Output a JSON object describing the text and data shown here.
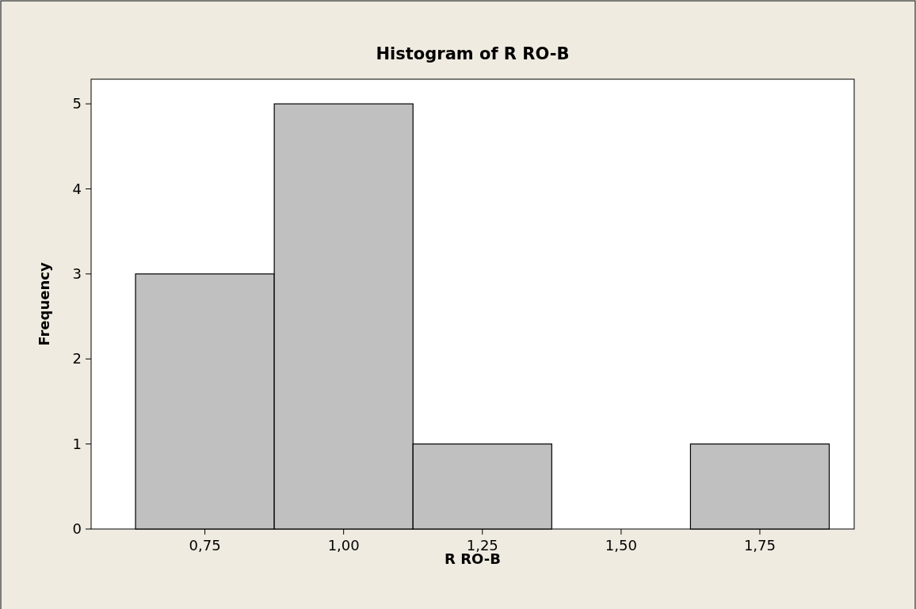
{
  "chart_data": {
    "type": "histogram",
    "title": "Histogram of R RO-B",
    "xlabel": "R RO-B",
    "ylabel": "Frequency",
    "bins": [
      0.625,
      0.875,
      1.125,
      1.375,
      1.625,
      1.875
    ],
    "values": [
      3,
      5,
      1,
      0,
      1
    ],
    "color": "#c0c0c0",
    "xlim": [
      0.545,
      1.92
    ],
    "xticks": [
      {
        "value": 0.75,
        "label": "0,75"
      },
      {
        "value": 1,
        "label": "1,00"
      },
      {
        "value": 1.25,
        "label": "1,25"
      },
      {
        "value": 1.5,
        "label": "1,50"
      },
      {
        "value": 1.75,
        "label": "1,75"
      }
    ],
    "ylim": [
      0,
      5.29
    ],
    "yticks": [
      0,
      1,
      2,
      3,
      4,
      5
    ],
    "grid": false
  }
}
